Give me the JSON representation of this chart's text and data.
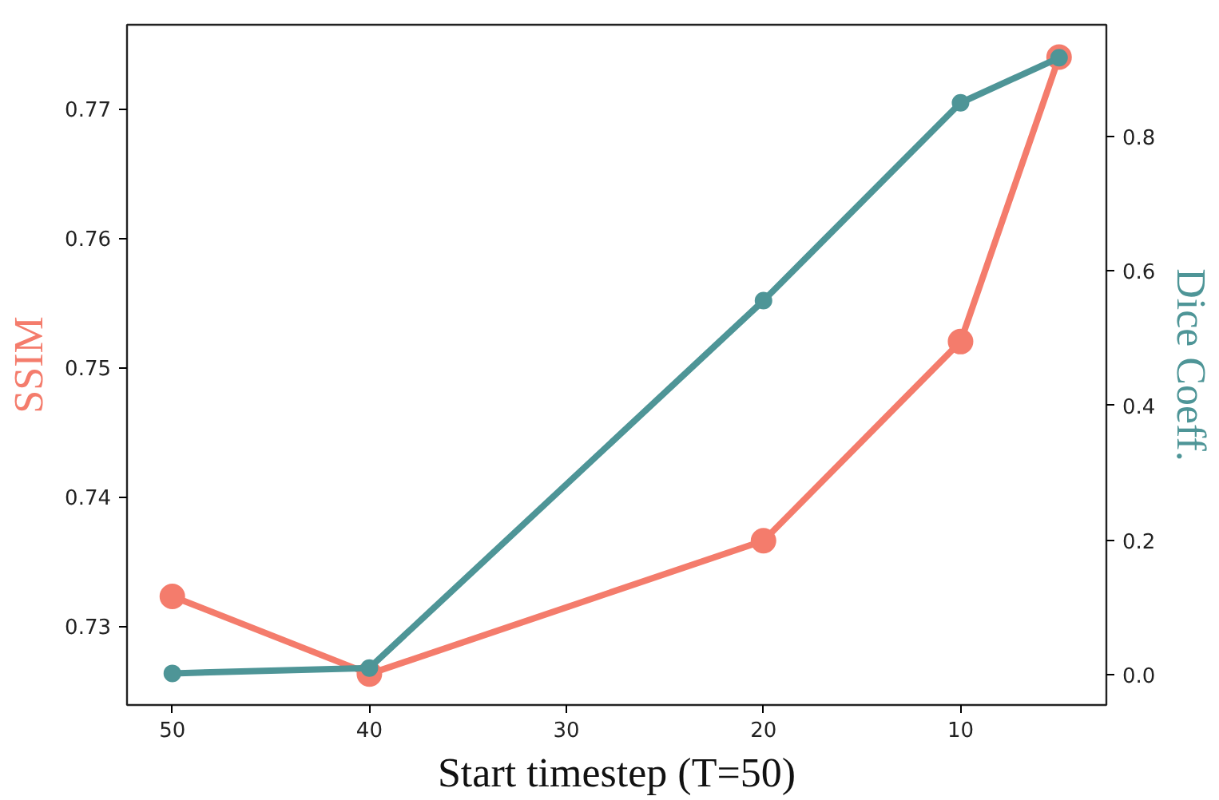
{
  "chart_data": {
    "type": "line",
    "xlabel": "Start timestep (T=50)",
    "ylabel": "SSIM",
    "y2label": "Dice Coeff.",
    "x": [
      50,
      40,
      20,
      10,
      5
    ],
    "series": [
      {
        "color": "#f47c6c",
        "values": [
          0.7323,
          0.7263,
          0.7366,
          0.752,
          0.774
        ]
      },
      {
        "color": "#4e9597",
        "axis": "y2",
        "values": [
          0.002,
          0.01,
          0.556,
          0.85,
          0.917
        ]
      }
    ],
    "xlim": [
      52.3,
      2.6
    ],
    "xticks": [
      50,
      40,
      30,
      20,
      10
    ],
    "ylim": [
      0.7239,
      0.7765
    ],
    "yticks": [
      0.73,
      0.74,
      0.75,
      0.76,
      0.77
    ],
    "y2lim": [
      -0.045,
      0.966
    ],
    "y2ticks": [
      {
        "value": 0,
        "label": "0.0"
      },
      0.2,
      0.4,
      0.6,
      0.8
    ],
    "marker": "circle",
    "line_style": "solid",
    "grid": false
  }
}
